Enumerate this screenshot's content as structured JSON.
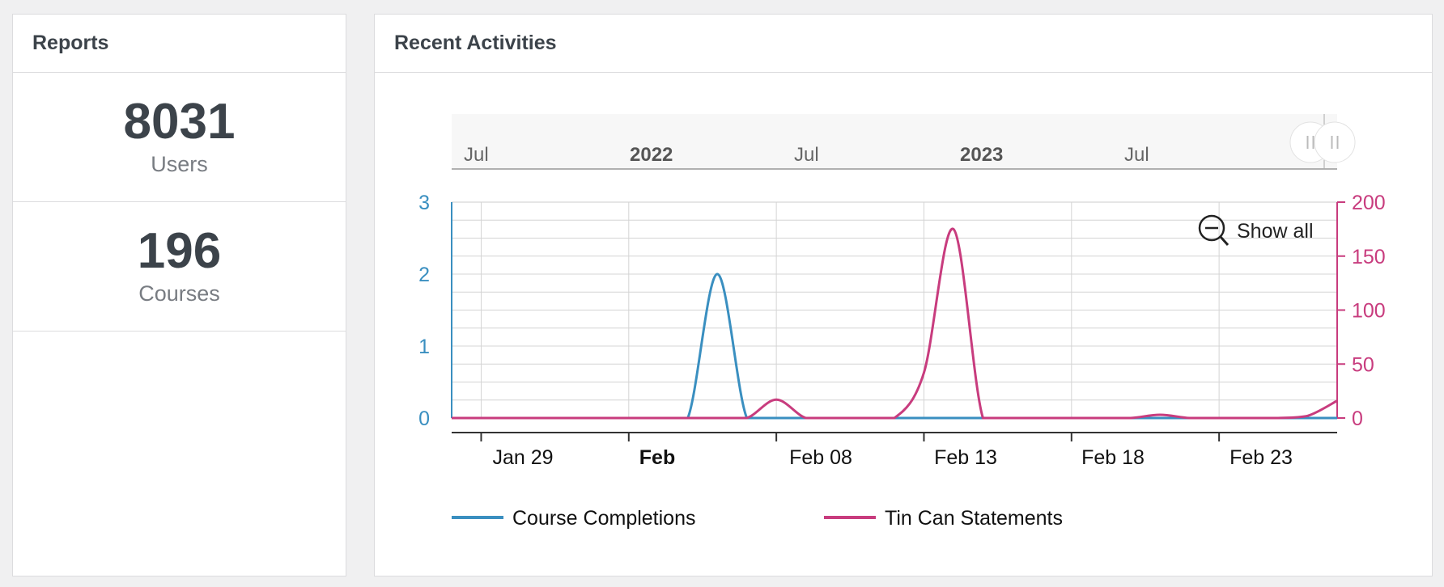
{
  "reports": {
    "title": "Reports",
    "stats": [
      {
        "value": "8031",
        "label": "Users"
      },
      {
        "value": "196",
        "label": "Courses"
      }
    ]
  },
  "activities": {
    "title": "Recent Activities",
    "show_all": "Show all"
  },
  "navigator": {
    "labels": [
      {
        "text": "Jul",
        "bold": false
      },
      {
        "text": "2022",
        "bold": true
      },
      {
        "text": "Jul",
        "bold": false
      },
      {
        "text": "2023",
        "bold": true
      },
      {
        "text": "Jul",
        "bold": false
      }
    ]
  },
  "colors": {
    "course_completions": "#3a8fc0",
    "tin_can": "#c83c7e",
    "grid": "#d4d4d4"
  },
  "chart_data": {
    "type": "line",
    "x_tick_labels": [
      {
        "text": "Jan 29",
        "bold": false
      },
      {
        "text": "Feb",
        "bold": true
      },
      {
        "text": "Feb 08",
        "bold": false
      },
      {
        "text": "Feb 13",
        "bold": false
      },
      {
        "text": "Feb 18",
        "bold": false
      },
      {
        "text": "Feb 23",
        "bold": false
      }
    ],
    "x_range": [
      "Jan 28",
      "Feb 27"
    ],
    "x": [
      "Jan 28",
      "Jan 29",
      "Jan 30",
      "Jan 31",
      "Feb 01",
      "Feb 02",
      "Feb 03",
      "Feb 04",
      "Feb 05",
      "Feb 06",
      "Feb 07",
      "Feb 08",
      "Feb 09",
      "Feb 10",
      "Feb 11",
      "Feb 12",
      "Feb 13",
      "Feb 14",
      "Feb 15",
      "Feb 16",
      "Feb 17",
      "Feb 18",
      "Feb 19",
      "Feb 20",
      "Feb 21",
      "Feb 22",
      "Feb 23",
      "Feb 24",
      "Feb 25",
      "Feb 26",
      "Feb 27"
    ],
    "series": [
      {
        "name": "Course Completions",
        "axis": "left",
        "values": [
          0,
          0,
          0,
          0,
          0,
          0,
          0,
          0,
          0,
          2,
          0,
          0,
          0,
          0,
          0,
          0,
          0,
          0,
          0,
          0,
          0,
          0,
          0,
          0,
          0,
          0,
          0,
          0,
          0,
          0,
          0
        ]
      },
      {
        "name": "Tin Can Statements",
        "axis": "right",
        "values": [
          0,
          0,
          0,
          0,
          0,
          0,
          0,
          0,
          0,
          0,
          0,
          17,
          0,
          0,
          0,
          0,
          42,
          175,
          0,
          0,
          0,
          0,
          0,
          0,
          3,
          0,
          0,
          0,
          0,
          2,
          16
        ]
      }
    ],
    "y_left": {
      "min": 0,
      "max": 3,
      "ticks": [
        0,
        1,
        2,
        3
      ]
    },
    "y_right": {
      "min": 0,
      "max": 200,
      "ticks": [
        0,
        50,
        100,
        150,
        200
      ]
    },
    "grid": true,
    "legend_position": "bottom"
  }
}
